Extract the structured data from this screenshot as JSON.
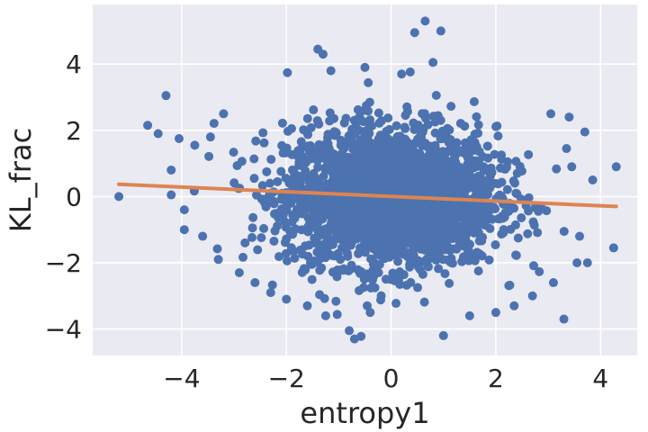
{
  "chart_data": {
    "type": "scatter",
    "title": "",
    "xlabel": "entropy1",
    "ylabel": "KL_frac",
    "xlim": [
      -5.7,
      4.7
    ],
    "ylim": [
      -4.8,
      5.8
    ],
    "xticks": [
      -4,
      -2,
      0,
      2,
      4
    ],
    "xtick_labels": [
      "−4",
      "−2",
      "0",
      "2",
      "4"
    ],
    "yticks": [
      -4,
      -2,
      0,
      2,
      4
    ],
    "ytick_labels": [
      "−4",
      "−2",
      "0",
      "2",
      "4"
    ],
    "grid": true,
    "background_color": "#eaeaf2",
    "grid_color": "#ffffff",
    "points_color": "#4c72b0",
    "fit_color": "#dd8452",
    "point_count_description": "dense cloud centered near (0,0), roughly 2D normal",
    "outliers": [
      {
        "x": -5.2,
        "y": 0.0
      },
      {
        "x": -4.3,
        "y": 3.05
      },
      {
        "x": -4.65,
        "y": 2.15
      },
      {
        "x": -4.45,
        "y": 1.9
      },
      {
        "x": -4.2,
        "y": 0.8
      },
      {
        "x": -4.2,
        "y": 0.05
      },
      {
        "x": -4.05,
        "y": 1.75
      },
      {
        "x": -3.95,
        "y": -0.4
      },
      {
        "x": -3.95,
        "y": -1.0
      },
      {
        "x": -3.75,
        "y": 1.55
      },
      {
        "x": -3.6,
        "y": -1.2
      },
      {
        "x": -3.45,
        "y": 1.8
      },
      {
        "x": -3.3,
        "y": -1.9
      },
      {
        "x": -3.2,
        "y": 2.5
      },
      {
        "x": -2.9,
        "y": -2.3
      },
      {
        "x": -2.6,
        "y": -2.6
      },
      {
        "x": -2.3,
        "y": -2.9
      },
      {
        "x": -2.0,
        "y": -3.1
      },
      {
        "x": -1.6,
        "y": -3.3
      },
      {
        "x": -1.25,
        "y": -3.6
      },
      {
        "x": -1.15,
        "y": 3.8
      },
      {
        "x": -1.4,
        "y": 4.45
      },
      {
        "x": -1.3,
        "y": 4.3
      },
      {
        "x": -0.8,
        "y": -4.05
      },
      {
        "x": -0.7,
        "y": -4.3
      },
      {
        "x": -0.4,
        "y": -3.5
      },
      {
        "x": -0.5,
        "y": 3.9
      },
      {
        "x": 0.2,
        "y": 3.7
      },
      {
        "x": 0.45,
        "y": 4.95
      },
      {
        "x": 0.65,
        "y": 5.3
      },
      {
        "x": 0.8,
        "y": 4.05
      },
      {
        "x": 0.95,
        "y": 5.0
      },
      {
        "x": 1.0,
        "y": -4.2
      },
      {
        "x": 1.5,
        "y": -3.6
      },
      {
        "x": 2.0,
        "y": -3.5
      },
      {
        "x": 2.35,
        "y": -3.3
      },
      {
        "x": 2.7,
        "y": -3.0
      },
      {
        "x": 3.1,
        "y": -2.6
      },
      {
        "x": 3.3,
        "y": -3.7
      },
      {
        "x": 3.05,
        "y": 2.5
      },
      {
        "x": 3.4,
        "y": 2.4
      },
      {
        "x": 3.55,
        "y": -2.0
      },
      {
        "x": 3.7,
        "y": 1.95
      },
      {
        "x": 3.75,
        "y": -2.0
      },
      {
        "x": 3.45,
        "y": 0.9
      },
      {
        "x": 4.25,
        "y": -1.55
      },
      {
        "x": 4.3,
        "y": 0.9
      },
      {
        "x": 3.85,
        "y": 0.5
      },
      {
        "x": 3.6,
        "y": -1.2
      },
      {
        "x": 3.35,
        "y": 1.45
      }
    ],
    "regression_line": {
      "x": [
        -5.2,
        4.3
      ],
      "y": [
        0.37,
        -0.3
      ]
    }
  }
}
